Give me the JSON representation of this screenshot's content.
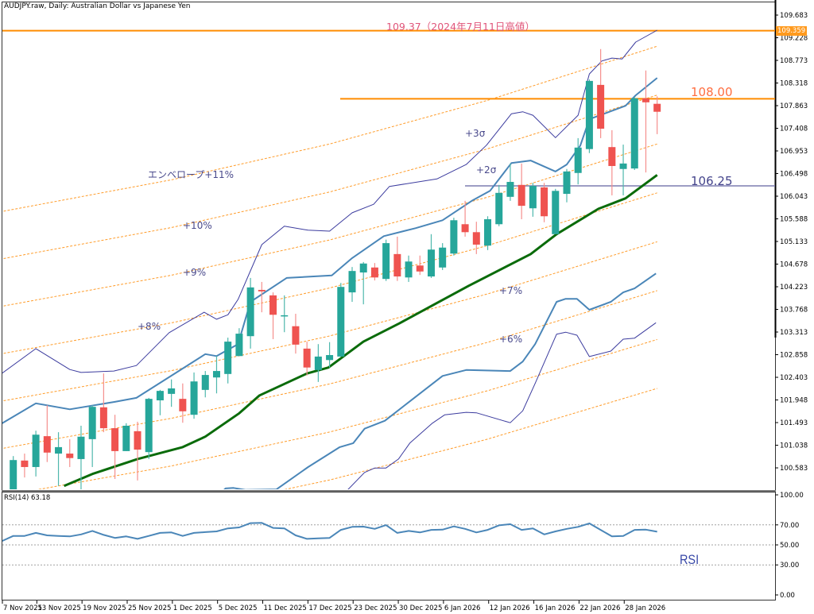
{
  "header": {
    "title": "AUDJPY.raw, Daily:  Australian Dollar vs Japanese Yen"
  },
  "colors": {
    "bull": "#26a69a",
    "bear": "#ef5350",
    "bull_wick": "#4fb8ad",
    "bear_wick": "#f58f8d",
    "ma": "#0a6b0a",
    "bb2": "#4a86b8",
    "bb3": "#3b3b9e",
    "envelope": "#ff9c2a",
    "level_orange": "#ff8c00",
    "level_purple": "#7d7db0",
    "grid_dotted": "#a0a0a0"
  },
  "annotations": {
    "envelope_11": "エンベロープ+11%",
    "env_10": "+10%",
    "env_9": "+9%",
    "env_8": "+8%",
    "env_7": "+7%",
    "env_6": "+6%",
    "sigma_3": "+3σ",
    "sigma_2": "+2σ",
    "rsi": "RSI"
  },
  "chart_data": {
    "type": "candlestick",
    "title": "AUDJPY.raw, Daily:  Australian Dollar vs Japanese Yen",
    "ylim": [
      100.1,
      109.9
    ],
    "price_ticks": [
      {
        "value": 109.683,
        "label": "109.683"
      },
      {
        "value": 109.228,
        "label": "109.228"
      },
      {
        "value": 108.773,
        "label": "108.773"
      },
      {
        "value": 108.318,
        "label": "108.318"
      },
      {
        "value": 107.863,
        "label": "107.863"
      },
      {
        "value": 107.408,
        "label": "107.408"
      },
      {
        "value": 106.953,
        "label": "106.953"
      },
      {
        "value": 106.498,
        "label": "106.498"
      },
      {
        "value": 106.043,
        "label": "106.043"
      },
      {
        "value": 105.588,
        "label": "105.588"
      },
      {
        "value": 105.133,
        "label": "105.133"
      },
      {
        "value": 104.678,
        "label": "104.678"
      },
      {
        "value": 104.223,
        "label": "104.223"
      },
      {
        "value": 103.768,
        "label": "103.768"
      },
      {
        "value": 103.313,
        "label": "103.313"
      },
      {
        "value": 102.858,
        "label": "102.858"
      },
      {
        "value": 102.403,
        "label": "102.403"
      },
      {
        "value": 101.948,
        "label": "101.948"
      },
      {
        "value": 101.493,
        "label": "101.493"
      },
      {
        "value": 101.038,
        "label": "101.038"
      },
      {
        "value": 100.583,
        "label": "100.583"
      }
    ],
    "current_price_tag": {
      "value": 109.359,
      "label": "109.359"
    },
    "date_ticks": [
      {
        "idx": -1,
        "label": "7 Nov 2025"
      },
      {
        "idx": 3,
        "label": "13 Nov 2025"
      },
      {
        "idx": 7,
        "label": "19 Nov 2025"
      },
      {
        "idx": 11,
        "label": "25 Nov 2025"
      },
      {
        "idx": 15,
        "label": "1 Dec 2025"
      },
      {
        "idx": 19,
        "label": "5 Dec 2025"
      },
      {
        "idx": 23,
        "label": "11 Dec 2025"
      },
      {
        "idx": 27,
        "label": "17 Dec 2025"
      },
      {
        "idx": 31,
        "label": "23 Dec 2025"
      },
      {
        "idx": 35,
        "label": "30 Dec 2025"
      },
      {
        "idx": 39,
        "label": "6 Jan 2026"
      },
      {
        "idx": 43,
        "label": "12 Jan 2026"
      },
      {
        "idx": 47,
        "label": "16 Jan 2026"
      },
      {
        "idx": 51,
        "label": "22 Jan 2026"
      },
      {
        "idx": 55,
        "label": "28 Jan 2026"
      }
    ],
    "ohlc_fields": [
      "open",
      "high",
      "low",
      "close"
    ],
    "ohlc": [
      [
        100.1,
        100.82,
        100.05,
        100.74
      ],
      [
        100.73,
        100.87,
        100.39,
        100.6
      ],
      [
        100.6,
        101.33,
        100.41,
        101.25
      ],
      [
        101.22,
        101.84,
        100.7,
        100.89
      ],
      [
        100.87,
        101.3,
        100.22,
        101.0
      ],
      [
        100.87,
        101.16,
        100.6,
        100.78
      ],
      [
        100.76,
        101.43,
        100.14,
        101.21
      ],
      [
        101.16,
        101.84,
        100.6,
        101.81
      ],
      [
        101.8,
        102.48,
        101.3,
        101.38
      ],
      [
        101.38,
        101.65,
        100.36,
        100.92
      ],
      [
        100.92,
        101.48,
        100.92,
        101.43
      ],
      [
        101.32,
        101.51,
        100.33,
        100.95
      ],
      [
        100.9,
        101.99,
        100.76,
        101.97
      ],
      [
        101.94,
        102.15,
        101.64,
        102.13
      ],
      [
        102.07,
        102.36,
        101.81,
        102.18
      ],
      [
        101.97,
        102.28,
        101.49,
        101.72
      ],
      [
        101.65,
        102.5,
        101.57,
        102.32
      ],
      [
        102.15,
        102.53,
        102.0,
        102.45
      ],
      [
        102.4,
        102.83,
        102.08,
        102.53
      ],
      [
        102.47,
        103.2,
        102.28,
        103.12
      ],
      [
        102.83,
        103.39,
        102.83,
        103.28
      ],
      [
        103.23,
        104.4,
        102.98,
        104.21
      ],
      [
        104.16,
        104.32,
        103.71,
        104.13
      ],
      [
        104.05,
        104.11,
        103.17,
        103.66
      ],
      [
        103.63,
        104.05,
        103.31,
        103.65
      ],
      [
        103.43,
        103.68,
        102.88,
        103.06
      ],
      [
        102.98,
        103.12,
        102.44,
        102.6
      ],
      [
        102.55,
        103.07,
        102.31,
        102.82
      ],
      [
        102.75,
        103.11,
        102.6,
        102.85
      ],
      [
        102.82,
        104.3,
        102.82,
        104.22
      ],
      [
        104.11,
        104.62,
        103.92,
        104.54
      ],
      [
        104.51,
        104.72,
        103.87,
        104.69
      ],
      [
        104.61,
        104.7,
        104.35,
        104.41
      ],
      [
        104.38,
        105.17,
        104.34,
        105.1
      ],
      [
        104.88,
        105.23,
        104.34,
        104.43
      ],
      [
        104.41,
        104.85,
        104.32,
        104.73
      ],
      [
        104.65,
        104.85,
        104.46,
        104.53
      ],
      [
        104.43,
        105.28,
        104.4,
        104.97
      ],
      [
        104.61,
        105.1,
        104.56,
        105.01
      ],
      [
        104.89,
        105.61,
        104.85,
        105.56
      ],
      [
        105.48,
        105.95,
        105.23,
        105.32
      ],
      [
        105.32,
        105.53,
        104.88,
        105.07
      ],
      [
        105.05,
        105.64,
        104.96,
        105.58
      ],
      [
        105.48,
        106.27,
        105.44,
        106.11
      ],
      [
        106.03,
        106.7,
        105.95,
        106.33
      ],
      [
        106.27,
        106.7,
        105.58,
        105.85
      ],
      [
        105.8,
        106.31,
        105.63,
        106.25
      ],
      [
        106.22,
        106.31,
        105.52,
        105.64
      ],
      [
        105.28,
        106.19,
        105.28,
        106.15
      ],
      [
        106.09,
        106.59,
        105.92,
        106.54
      ],
      [
        106.51,
        107.21,
        106.28,
        107.02
      ],
      [
        106.99,
        108.39,
        106.91,
        108.36
      ],
      [
        108.28,
        109.0,
        107.21,
        107.4
      ],
      [
        107.03,
        107.37,
        106.06,
        106.65
      ],
      [
        106.59,
        107.08,
        106.06,
        106.7
      ],
      [
        106.6,
        108.04,
        106.57,
        108.01
      ],
      [
        108.01,
        108.57,
        106.52,
        107.93
      ],
      [
        107.9,
        108.05,
        107.29,
        107.74
      ]
    ],
    "indicators": {
      "moving_average": [
        [
          4.5,
          100.22
        ],
        [
          7,
          100.46
        ],
        [
          11,
          100.76
        ],
        [
          15,
          101.0
        ],
        [
          17,
          101.21
        ],
        [
          20,
          101.68
        ],
        [
          21.8,
          102.04
        ],
        [
          26,
          102.48
        ],
        [
          27.9,
          102.6
        ],
        [
          31,
          103.12
        ],
        [
          34.2,
          103.49
        ],
        [
          40.3,
          104.24
        ],
        [
          45.8,
          104.88
        ],
        [
          48.1,
          105.28
        ],
        [
          51.8,
          105.79
        ],
        [
          54.2,
          106.0
        ],
        [
          57,
          106.47
        ]
      ],
      "bb_plus2": [
        [
          -1.2,
          101.45
        ],
        [
          2,
          101.88
        ],
        [
          5,
          101.76
        ],
        [
          9,
          101.91
        ],
        [
          10.9,
          101.99
        ],
        [
          15.2,
          102.61
        ],
        [
          17,
          102.87
        ],
        [
          18,
          102.83
        ],
        [
          19.9,
          103.07
        ],
        [
          21,
          103.92
        ],
        [
          24.2,
          104.4
        ],
        [
          28.2,
          104.45
        ],
        [
          30,
          104.8
        ],
        [
          32.8,
          105.24
        ],
        [
          35.6,
          105.4
        ],
        [
          38,
          105.56
        ],
        [
          40.6,
          105.95
        ],
        [
          42.2,
          106.15
        ],
        [
          44.1,
          106.71
        ],
        [
          45.8,
          106.76
        ],
        [
          48,
          106.54
        ],
        [
          49,
          106.68
        ],
        [
          50.2,
          107.06
        ],
        [
          51,
          107.59
        ],
        [
          52.3,
          107.7
        ],
        [
          54.2,
          107.86
        ],
        [
          55.1,
          108.07
        ],
        [
          57,
          108.42
        ]
      ],
      "bb_plus3": [
        [
          -1.2,
          102.45
        ],
        [
          2,
          102.98
        ],
        [
          5,
          102.56
        ],
        [
          6,
          102.5
        ],
        [
          8.9,
          102.53
        ],
        [
          10.9,
          102.64
        ],
        [
          13.8,
          103.3
        ],
        [
          16.9,
          103.71
        ],
        [
          18,
          103.57
        ],
        [
          19,
          103.66
        ],
        [
          19.9,
          103.97
        ],
        [
          22,
          105.07
        ],
        [
          24,
          105.44
        ],
        [
          26.1,
          105.36
        ],
        [
          28,
          105.34
        ],
        [
          30,
          105.71
        ],
        [
          31.9,
          105.88
        ],
        [
          33.3,
          106.24
        ],
        [
          37.5,
          106.39
        ],
        [
          40.1,
          106.68
        ],
        [
          41.9,
          107.07
        ],
        [
          44.1,
          107.7
        ],
        [
          45.1,
          107.74
        ],
        [
          46,
          107.67
        ],
        [
          48,
          107.22
        ],
        [
          50,
          107.67
        ],
        [
          51,
          108.5
        ],
        [
          52.1,
          108.76
        ],
        [
          53,
          108.82
        ],
        [
          53.9,
          108.8
        ],
        [
          55.1,
          109.14
        ],
        [
          57,
          109.38
        ]
      ],
      "bb_minus2": [
        [
          17.5,
          99.9
        ],
        [
          18.8,
          100.17
        ],
        [
          19.5,
          100.18
        ],
        [
          20.6,
          100.14
        ],
        [
          23.3,
          100.15
        ],
        [
          26.1,
          100.6
        ],
        [
          28.9,
          101.0
        ],
        [
          30.1,
          101.08
        ],
        [
          31.1,
          101.37
        ],
        [
          32.9,
          101.53
        ],
        [
          35.1,
          101.92
        ],
        [
          38,
          102.43
        ],
        [
          40.1,
          102.55
        ],
        [
          44,
          102.53
        ],
        [
          45.1,
          102.72
        ],
        [
          46.2,
          103.07
        ],
        [
          48.1,
          103.92
        ],
        [
          48.9,
          103.98
        ],
        [
          49.9,
          103.98
        ],
        [
          51,
          103.76
        ],
        [
          52.9,
          103.92
        ],
        [
          54,
          104.11
        ],
        [
          55,
          104.19
        ],
        [
          56.9,
          104.49
        ]
      ],
      "bb_minus3": [
        [
          28.8,
          99.9
        ],
        [
          29.6,
          100.14
        ],
        [
          31.1,
          100.49
        ],
        [
          32,
          100.58
        ],
        [
          33,
          100.58
        ],
        [
          34.1,
          100.76
        ],
        [
          35.1,
          101.08
        ],
        [
          37.1,
          101.48
        ],
        [
          38.2,
          101.65
        ],
        [
          40.1,
          101.7
        ],
        [
          41,
          101.69
        ],
        [
          44,
          101.49
        ],
        [
          45.1,
          101.73
        ],
        [
          46.2,
          102.28
        ],
        [
          48.1,
          103.27
        ],
        [
          48.9,
          103.31
        ],
        [
          49.9,
          103.25
        ],
        [
          51,
          102.82
        ],
        [
          52.9,
          102.93
        ],
        [
          54,
          103.17
        ],
        [
          55,
          103.19
        ],
        [
          56.9,
          103.5
        ]
      ],
      "envelope": {
        "base": [
          [
            -1.2,
            95.25
          ],
          [
            14,
            95.83
          ],
          [
            28,
            96.48
          ],
          [
            42,
            97.27
          ],
          [
            57,
            98.25
          ]
        ],
        "percents": [
          4,
          5,
          6,
          7,
          8,
          9,
          10,
          11
        ]
      }
    },
    "levels": [
      {
        "price": 109.37,
        "label": "109.37（2024年7月11日高値）"
      },
      {
        "price": 108.0,
        "label": "108.00"
      },
      {
        "price": 106.25,
        "label": "106.25"
      }
    ],
    "rsi": {
      "label": "RSI(14) 63.18",
      "period": 14,
      "last": 63.18,
      "ylim": [
        0,
        100
      ],
      "levels": [
        70,
        50,
        30
      ],
      "ticks": [
        {
          "value": 100,
          "label": "100.00"
        },
        {
          "value": 70,
          "label": "70.00"
        },
        {
          "value": 50,
          "label": "50.00"
        },
        {
          "value": 30,
          "label": "30.00"
        },
        {
          "value": 0,
          "label": "0.00"
        }
      ],
      "values": [
        [
          -1.2,
          52.75
        ],
        [
          0,
          59
        ],
        [
          1,
          59
        ],
        [
          2,
          62
        ],
        [
          3,
          59.5
        ],
        [
          4,
          59
        ],
        [
          5,
          58.5
        ],
        [
          6,
          60.5
        ],
        [
          7,
          64
        ],
        [
          8,
          60
        ],
        [
          9,
          57
        ],
        [
          10,
          58.5
        ],
        [
          11,
          56
        ],
        [
          12,
          59
        ],
        [
          13,
          62
        ],
        [
          14,
          62.5
        ],
        [
          15,
          59
        ],
        [
          16,
          62
        ],
        [
          17,
          62.75
        ],
        [
          18,
          63.5
        ],
        [
          19,
          66.5
        ],
        [
          20,
          67.5
        ],
        [
          21,
          71.75
        ],
        [
          22,
          72
        ],
        [
          23,
          67
        ],
        [
          24,
          66.5
        ],
        [
          25,
          59.5
        ],
        [
          26,
          56
        ],
        [
          27,
          56.5
        ],
        [
          28,
          57
        ],
        [
          29,
          65
        ],
        [
          30,
          68
        ],
        [
          31,
          68.25
        ],
        [
          32,
          66
        ],
        [
          33,
          69.75
        ],
        [
          34,
          62
        ],
        [
          35,
          64
        ],
        [
          36,
          62.5
        ],
        [
          37,
          65
        ],
        [
          38,
          65.25
        ],
        [
          39,
          68.5
        ],
        [
          40,
          66
        ],
        [
          41,
          62.5
        ],
        [
          42,
          65
        ],
        [
          43,
          69.5
        ],
        [
          44,
          70.75
        ],
        [
          45,
          65
        ],
        [
          46,
          66.5
        ],
        [
          47,
          60.5
        ],
        [
          48,
          63.5
        ],
        [
          49,
          66
        ],
        [
          50,
          68
        ],
        [
          51,
          71.5
        ],
        [
          52,
          65
        ],
        [
          53,
          58.5
        ],
        [
          54,
          59
        ],
        [
          55,
          65
        ],
        [
          56,
          65.25
        ],
        [
          57,
          63.18
        ]
      ]
    }
  }
}
